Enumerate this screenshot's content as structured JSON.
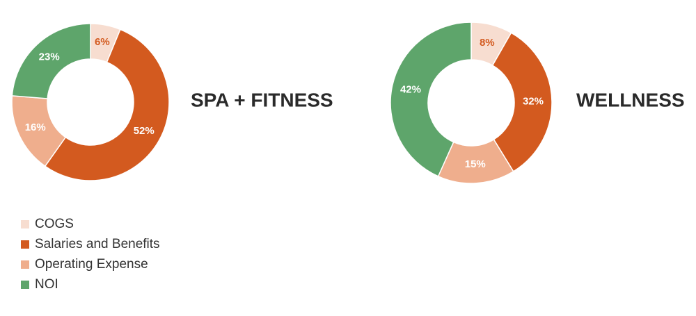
{
  "legend": {
    "labels": [
      "COGS",
      "Salaries and Benefits",
      "Operating Expense",
      "NOI"
    ],
    "colors": [
      "#f7ddd0",
      "#d35a1f",
      "#efae8d",
      "#5ea56b"
    ]
  },
  "chart_data": [
    {
      "type": "pie",
      "title": "SPA + FITNESS",
      "values": [
        6,
        52,
        16,
        23
      ],
      "value_labels": [
        "6%",
        "52%",
        "16%",
        "23%"
      ]
    },
    {
      "type": "pie",
      "title": "WELLNESS",
      "values": [
        8,
        32,
        15,
        42
      ],
      "value_labels": [
        "8%",
        "32%",
        "15%",
        "42%"
      ]
    }
  ]
}
